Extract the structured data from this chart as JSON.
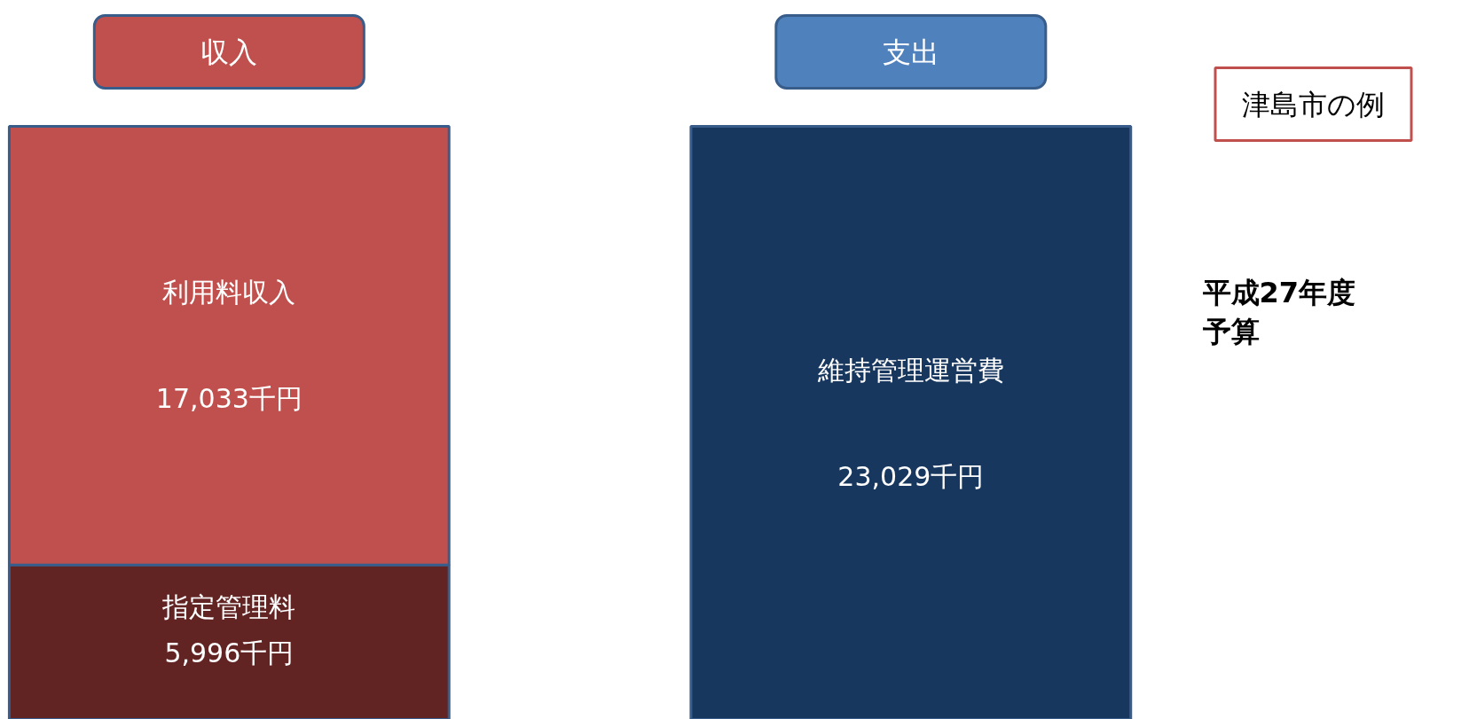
{
  "chart_data": {
    "type": "bar",
    "stacked": true,
    "categories": [
      "収入",
      "支出"
    ],
    "series": [
      {
        "name": "指定管理料",
        "color": "#622423",
        "values": [
          5996,
          null
        ],
        "value_labels": [
          "5,996千円",
          null
        ]
      },
      {
        "name": "利用料収入",
        "color": "#c0504d",
        "values": [
          17033,
          null
        ],
        "value_labels": [
          "17,033千円",
          null
        ]
      },
      {
        "name": "維持管理運営費",
        "color": "#17375e",
        "values": [
          null,
          23029
        ],
        "value_labels": [
          null,
          "23,029千円"
        ]
      }
    ],
    "annotations": [
      "津島市の例",
      "平成27年度",
      "予算"
    ],
    "legend": false,
    "grid": false
  }
}
